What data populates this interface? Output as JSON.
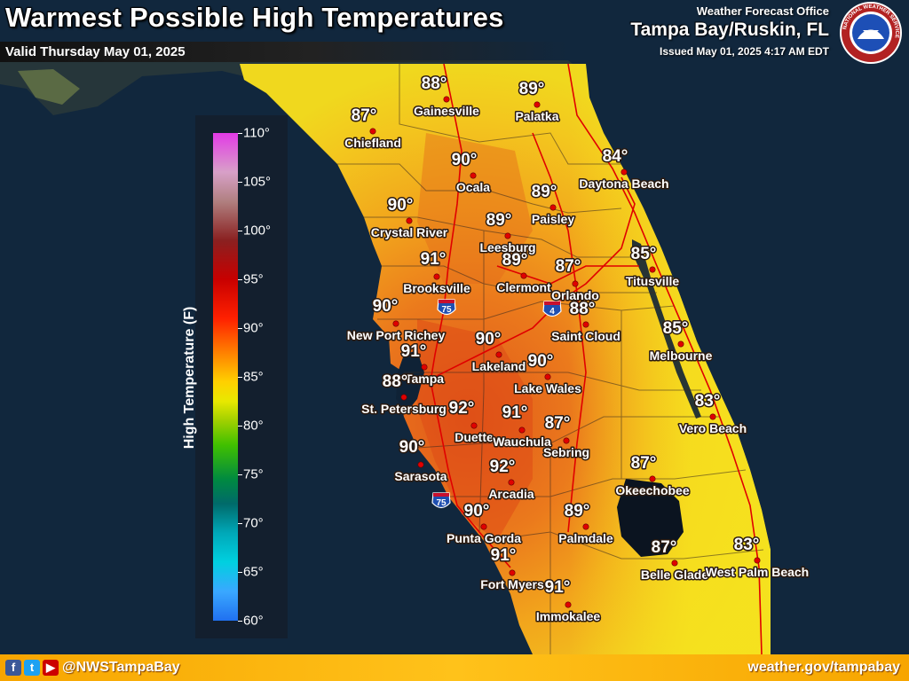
{
  "header": {
    "title": "Warmest Possible High Temperatures",
    "valid": "Valid Thursday May 01, 2025",
    "office_line1": "Weather Forecast Office",
    "office_line2": "Tampa Bay/Ruskin, FL",
    "issued": "Issued May 01, 2025 4:17 AM EDT",
    "logo_ring_text": "NATIONAL WEATHER SERVICE"
  },
  "legend": {
    "title": "High Temperature (F)",
    "ticks": [
      "110°",
      "105°",
      "100°",
      "95°",
      "90°",
      "85°",
      "80°",
      "75°",
      "70°",
      "65°",
      "60°"
    ],
    "range": [
      60,
      110
    ]
  },
  "highways": [
    {
      "name": "I-75 north",
      "shield": "75"
    },
    {
      "name": "I-4",
      "shield": "4"
    },
    {
      "name": "I-75 south",
      "shield": "75"
    }
  ],
  "cities": [
    {
      "name": "Gainesville",
      "temp": "88°"
    },
    {
      "name": "Palatka",
      "temp": "89°"
    },
    {
      "name": "Chiefland",
      "temp": "87°"
    },
    {
      "name": "Ocala",
      "temp": "90°"
    },
    {
      "name": "Daytona Beach",
      "temp": "84°"
    },
    {
      "name": "Paisley",
      "temp": "89°"
    },
    {
      "name": "Crystal River",
      "temp": "90°"
    },
    {
      "name": "Leesburg",
      "temp": "89°"
    },
    {
      "name": "Clermont",
      "temp": "89°"
    },
    {
      "name": "Orlando",
      "temp": "87°"
    },
    {
      "name": "Titusville",
      "temp": "85°"
    },
    {
      "name": "Brooksville",
      "temp": "91°"
    },
    {
      "name": "New Port Richey",
      "temp": "90°"
    },
    {
      "name": "Saint Cloud",
      "temp": "88°"
    },
    {
      "name": "Melbourne",
      "temp": "85°"
    },
    {
      "name": "Tampa",
      "temp": "91°"
    },
    {
      "name": "Lakeland",
      "temp": "90°"
    },
    {
      "name": "Lake Wales",
      "temp": "90°"
    },
    {
      "name": "St. Petersburg",
      "temp": "88°"
    },
    {
      "name": "Duette",
      "temp": "92°"
    },
    {
      "name": "Wauchula",
      "temp": "91°"
    },
    {
      "name": "Sebring",
      "temp": "87°"
    },
    {
      "name": "Vero Beach",
      "temp": "83°"
    },
    {
      "name": "Sarasota",
      "temp": "90°"
    },
    {
      "name": "Arcadia",
      "temp": "92°"
    },
    {
      "name": "Okeechobee",
      "temp": "87°"
    },
    {
      "name": "Punta Gorda",
      "temp": "90°"
    },
    {
      "name": "Palmdale",
      "temp": "89°"
    },
    {
      "name": "Fort Myers",
      "temp": "91°"
    },
    {
      "name": "Belle Glade",
      "temp": "87°"
    },
    {
      "name": "West Palm Beach",
      "temp": "83°"
    },
    {
      "name": "Immokalee",
      "temp": "91°"
    }
  ],
  "footer": {
    "social_icons": [
      "facebook-icon",
      "twitter-icon",
      "youtube-icon"
    ],
    "handle": "@NWSTampaBay",
    "url": "weather.gov/tampabay"
  },
  "colors": {
    "water": "#0f2236",
    "accent_orange": "#f7a500"
  }
}
